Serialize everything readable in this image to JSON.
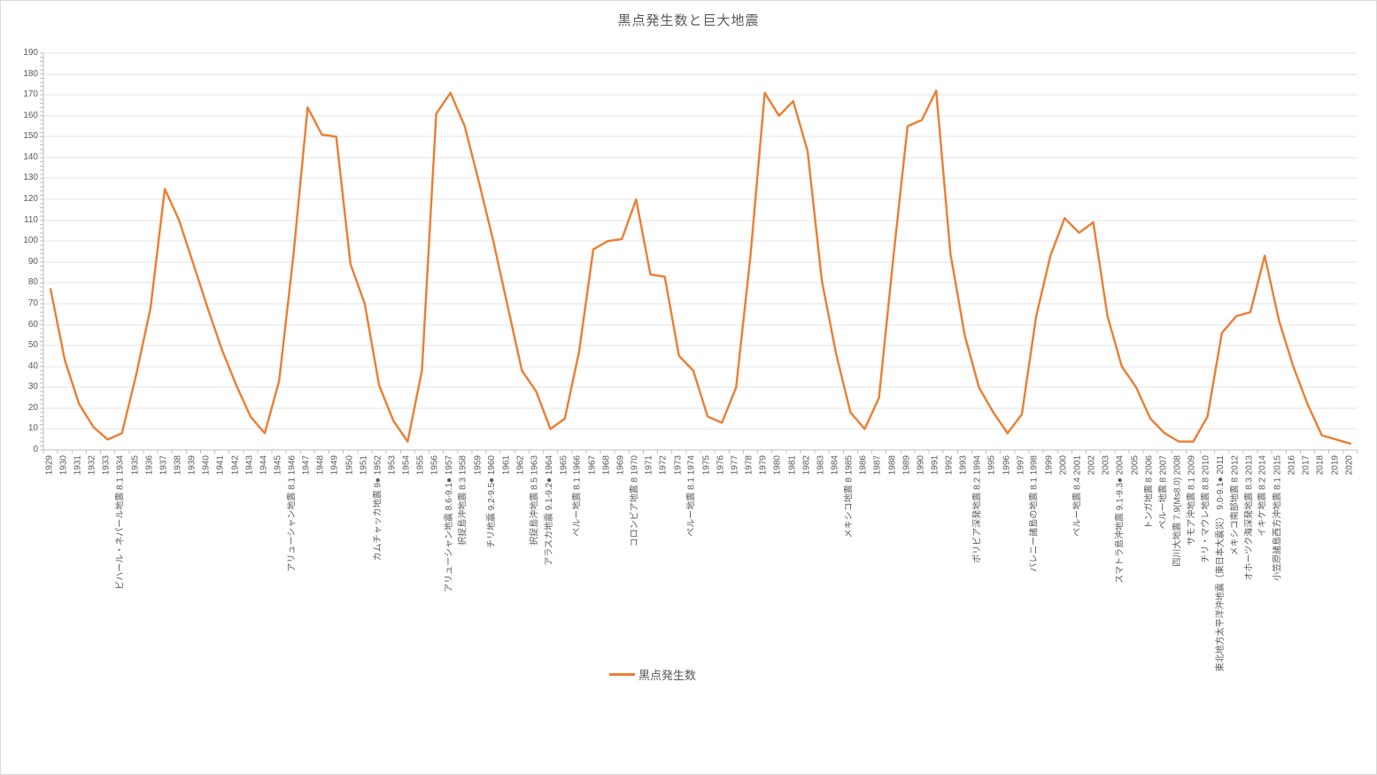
{
  "colors": {
    "accent": "#ED7D31",
    "axis_text": "#595959",
    "gridline": "#E3E3E3",
    "axis_line": "#BFBFBF",
    "background": "#FFFFFF"
  },
  "chart_data": {
    "type": "line",
    "title": "黒点発生数と巨大地震",
    "xlabel": "",
    "ylabel": "",
    "ylim": [
      0,
      190
    ],
    "ytick_step": 10,
    "ytick_minor_step": 2,
    "grid": "horizontal-only",
    "legend_position": "bottom-center",
    "categories": [
      "1929",
      "1930",
      "1931",
      "1932",
      "1933",
      "1934",
      "1935",
      "1936",
      "1937",
      "1938",
      "1939",
      "1940",
      "1941",
      "1942",
      "1943",
      "1944",
      "1945",
      "1946",
      "1947",
      "1948",
      "1949",
      "1950",
      "1951",
      "1952",
      "1953",
      "1954",
      "1955",
      "1956",
      "1957",
      "1958",
      "1959",
      "1960",
      "1961",
      "1962",
      "1963",
      "1964",
      "1965",
      "1966",
      "1967",
      "1968",
      "1969",
      "1970",
      "1971",
      "1972",
      "1973",
      "1974",
      "1975",
      "1976",
      "1977",
      "1978",
      "1979",
      "1980",
      "1981",
      "1982",
      "1983",
      "1984",
      "1985",
      "1986",
      "1987",
      "1988",
      "1989",
      "1990",
      "1991",
      "1992",
      "1993",
      "1994",
      "1995",
      "1996",
      "1997",
      "1998",
      "1999",
      "2000",
      "2001",
      "2002",
      "2003",
      "2004",
      "2005",
      "2006",
      "2007",
      "2008",
      "2009",
      "2010",
      "2011",
      "2012",
      "2013",
      "2014",
      "2015",
      "2016",
      "2017",
      "2018",
      "2019",
      "2020"
    ],
    "series": [
      {
        "name": "黒点発生数",
        "color": "#ED7D31",
        "values": [
          77,
          43,
          22,
          11,
          5,
          8,
          36,
          68,
          125,
          110,
          89,
          68,
          48,
          31,
          16,
          8,
          33,
          93,
          164,
          151,
          150,
          89,
          70,
          31,
          14,
          4,
          38,
          161,
          171,
          155,
          128,
          100,
          69,
          38,
          28,
          10,
          15,
          47,
          96,
          100,
          101,
          120,
          84,
          83,
          45,
          38,
          16,
          13,
          30,
          93,
          171,
          160,
          167,
          143,
          81,
          46,
          18,
          10,
          25,
          92,
          155,
          158,
          172,
          94,
          55,
          30,
          18,
          8,
          17,
          64,
          93,
          111,
          104,
          109,
          64,
          40,
          30,
          15,
          8,
          4,
          4,
          16,
          56,
          64,
          66,
          93,
          62,
          40,
          22,
          7,
          5,
          3
        ]
      }
    ],
    "earthquake_annotations": [
      {
        "year": "1934",
        "label": "ビハール・ネパール地震 8.1"
      },
      {
        "year": "1946",
        "label": "アリューシャン地震 8.1"
      },
      {
        "year": "1952",
        "label": "カムチャッカ地震 9●"
      },
      {
        "year": "1957",
        "label": "アリューシャン地震 8.6-9.1●"
      },
      {
        "year": "1958",
        "label": "択捉島沖地震 8.3"
      },
      {
        "year": "1960",
        "label": "チリ地震 9.2-9.5●"
      },
      {
        "year": "1963",
        "label": "択捉島沖地震 8.5"
      },
      {
        "year": "1964",
        "label": "アラスカ地震 9.1-9.2●"
      },
      {
        "year": "1966",
        "label": "ペルー地震 8.1"
      },
      {
        "year": "1970",
        "label": "コロンビア地震 8"
      },
      {
        "year": "1974",
        "label": "ペルー地震 8.1"
      },
      {
        "year": "1985",
        "label": "メキシコ地震 8"
      },
      {
        "year": "1994",
        "label": "ボリビア深発地震 8.2"
      },
      {
        "year": "1998",
        "label": "バレニー諸島の地震 8.1"
      },
      {
        "year": "2001",
        "label": "ペルー地震 8.4"
      },
      {
        "year": "2004",
        "label": "スマトラ島沖地震 9.1-9.3●"
      },
      {
        "year": "2006",
        "label": "トンガ地震 8"
      },
      {
        "year": "2007",
        "label": "ペルー地震 8"
      },
      {
        "year": "2008",
        "label": "四川大地震 7.9(Ms8.0)"
      },
      {
        "year": "2009",
        "label": "サモア沖地震 8.1"
      },
      {
        "year": "2010",
        "label": "チリ・マウレ地震 8.8"
      },
      {
        "year": "2011",
        "label": "東北地方太平洋沖地震（東日本大震災） 9.0-9.1●"
      },
      {
        "year": "2012",
        "label": "メキシコ南部地震 8"
      },
      {
        "year": "2013",
        "label": "オホーツク海深発地震 8.3"
      },
      {
        "year": "2014",
        "label": "イキケ地震 8.2"
      },
      {
        "year": "2015",
        "label": "小笠原諸島西方沖地震 8.1"
      }
    ]
  }
}
